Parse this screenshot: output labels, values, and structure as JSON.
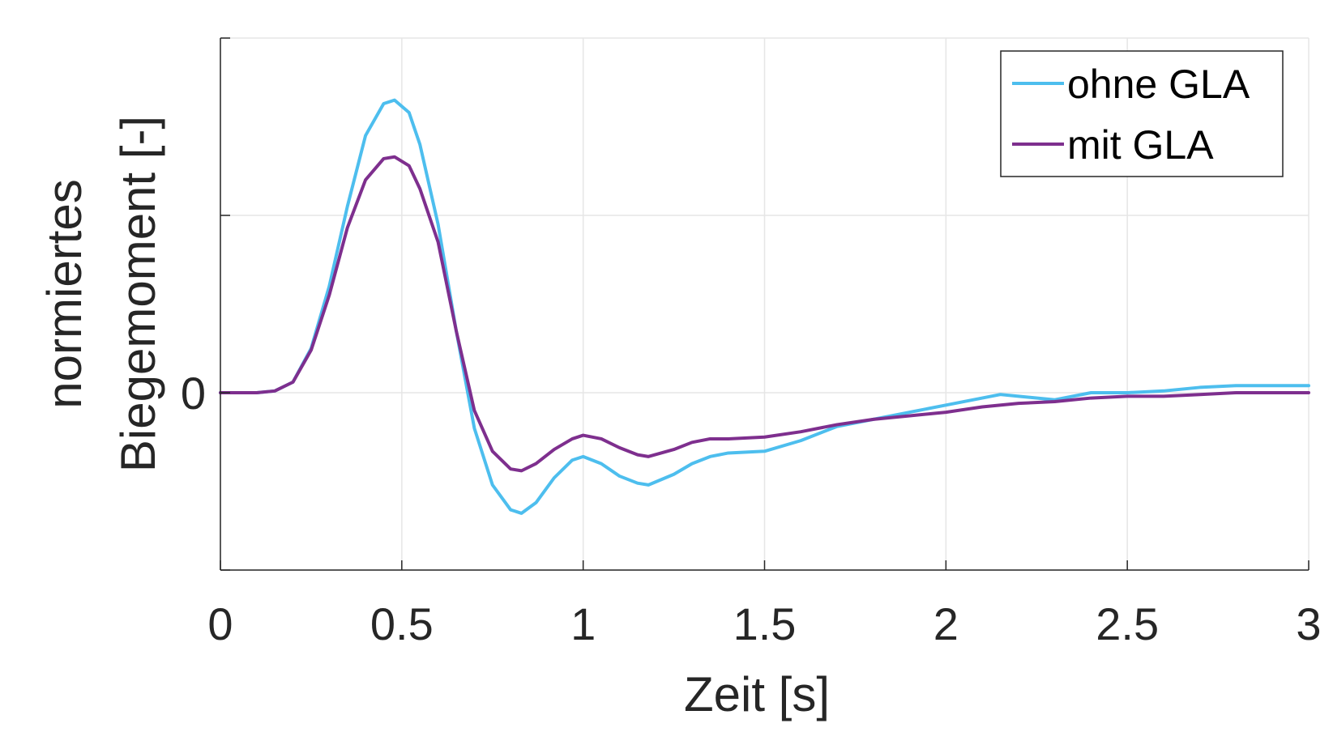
{
  "chart_data": {
    "type": "line",
    "title": "",
    "xlabel": "Zeit [s]",
    "ylabel_line1": "normiertes",
    "ylabel_line2": "Biegemoment [-]",
    "xlim": [
      0,
      3
    ],
    "ylim": [
      -1,
      2
    ],
    "xticks": [
      0,
      0.5,
      1,
      1.5,
      2,
      2.5,
      3
    ],
    "xtick_labels": [
      "0",
      "0.5",
      "1",
      "1.5",
      "2",
      "2.5",
      "3"
    ],
    "yticks": [
      -1,
      0,
      1,
      2
    ],
    "ytick_labels": [
      "",
      "0",
      "",
      ""
    ],
    "grid": true,
    "legend_position": "top-right",
    "series": [
      {
        "name": "ohne GLA",
        "color": "#4DBEEE",
        "x": [
          0,
          0.1,
          0.15,
          0.2,
          0.25,
          0.3,
          0.35,
          0.4,
          0.45,
          0.48,
          0.52,
          0.55,
          0.6,
          0.65,
          0.7,
          0.75,
          0.8,
          0.83,
          0.87,
          0.92,
          0.97,
          1.0,
          1.05,
          1.1,
          1.15,
          1.18,
          1.25,
          1.3,
          1.35,
          1.4,
          1.5,
          1.6,
          1.7,
          1.8,
          1.9,
          2.0,
          2.1,
          2.15,
          2.2,
          2.3,
          2.4,
          2.5,
          2.6,
          2.7,
          2.8,
          2.9,
          3.0
        ],
        "y": [
          0,
          0,
          0.01,
          0.06,
          0.25,
          0.6,
          1.05,
          1.45,
          1.63,
          1.65,
          1.58,
          1.4,
          0.95,
          0.35,
          -0.2,
          -0.52,
          -0.66,
          -0.68,
          -0.62,
          -0.48,
          -0.38,
          -0.36,
          -0.4,
          -0.47,
          -0.51,
          -0.52,
          -0.46,
          -0.4,
          -0.36,
          -0.34,
          -0.33,
          -0.27,
          -0.19,
          -0.15,
          -0.11,
          -0.07,
          -0.03,
          -0.01,
          -0.02,
          -0.04,
          0.0,
          0.0,
          0.01,
          0.03,
          0.04,
          0.04,
          0.04
        ]
      },
      {
        "name": "mit GLA",
        "color": "#7E2F8E",
        "x": [
          0,
          0.1,
          0.15,
          0.2,
          0.25,
          0.3,
          0.35,
          0.4,
          0.45,
          0.48,
          0.52,
          0.55,
          0.6,
          0.65,
          0.7,
          0.75,
          0.8,
          0.83,
          0.87,
          0.92,
          0.97,
          1.0,
          1.05,
          1.1,
          1.15,
          1.18,
          1.25,
          1.3,
          1.35,
          1.4,
          1.5,
          1.6,
          1.7,
          1.8,
          1.9,
          2.0,
          2.1,
          2.2,
          2.3,
          2.4,
          2.5,
          2.6,
          2.7,
          2.8,
          2.9,
          3.0
        ],
        "y": [
          0,
          0,
          0.01,
          0.06,
          0.24,
          0.55,
          0.93,
          1.2,
          1.32,
          1.33,
          1.28,
          1.15,
          0.85,
          0.35,
          -0.1,
          -0.33,
          -0.43,
          -0.44,
          -0.4,
          -0.32,
          -0.26,
          -0.24,
          -0.26,
          -0.31,
          -0.35,
          -0.36,
          -0.32,
          -0.28,
          -0.26,
          -0.26,
          -0.25,
          -0.22,
          -0.18,
          -0.15,
          -0.13,
          -0.11,
          -0.08,
          -0.06,
          -0.05,
          -0.03,
          -0.02,
          -0.02,
          -0.01,
          0.0,
          0.0,
          0.0
        ]
      }
    ]
  }
}
